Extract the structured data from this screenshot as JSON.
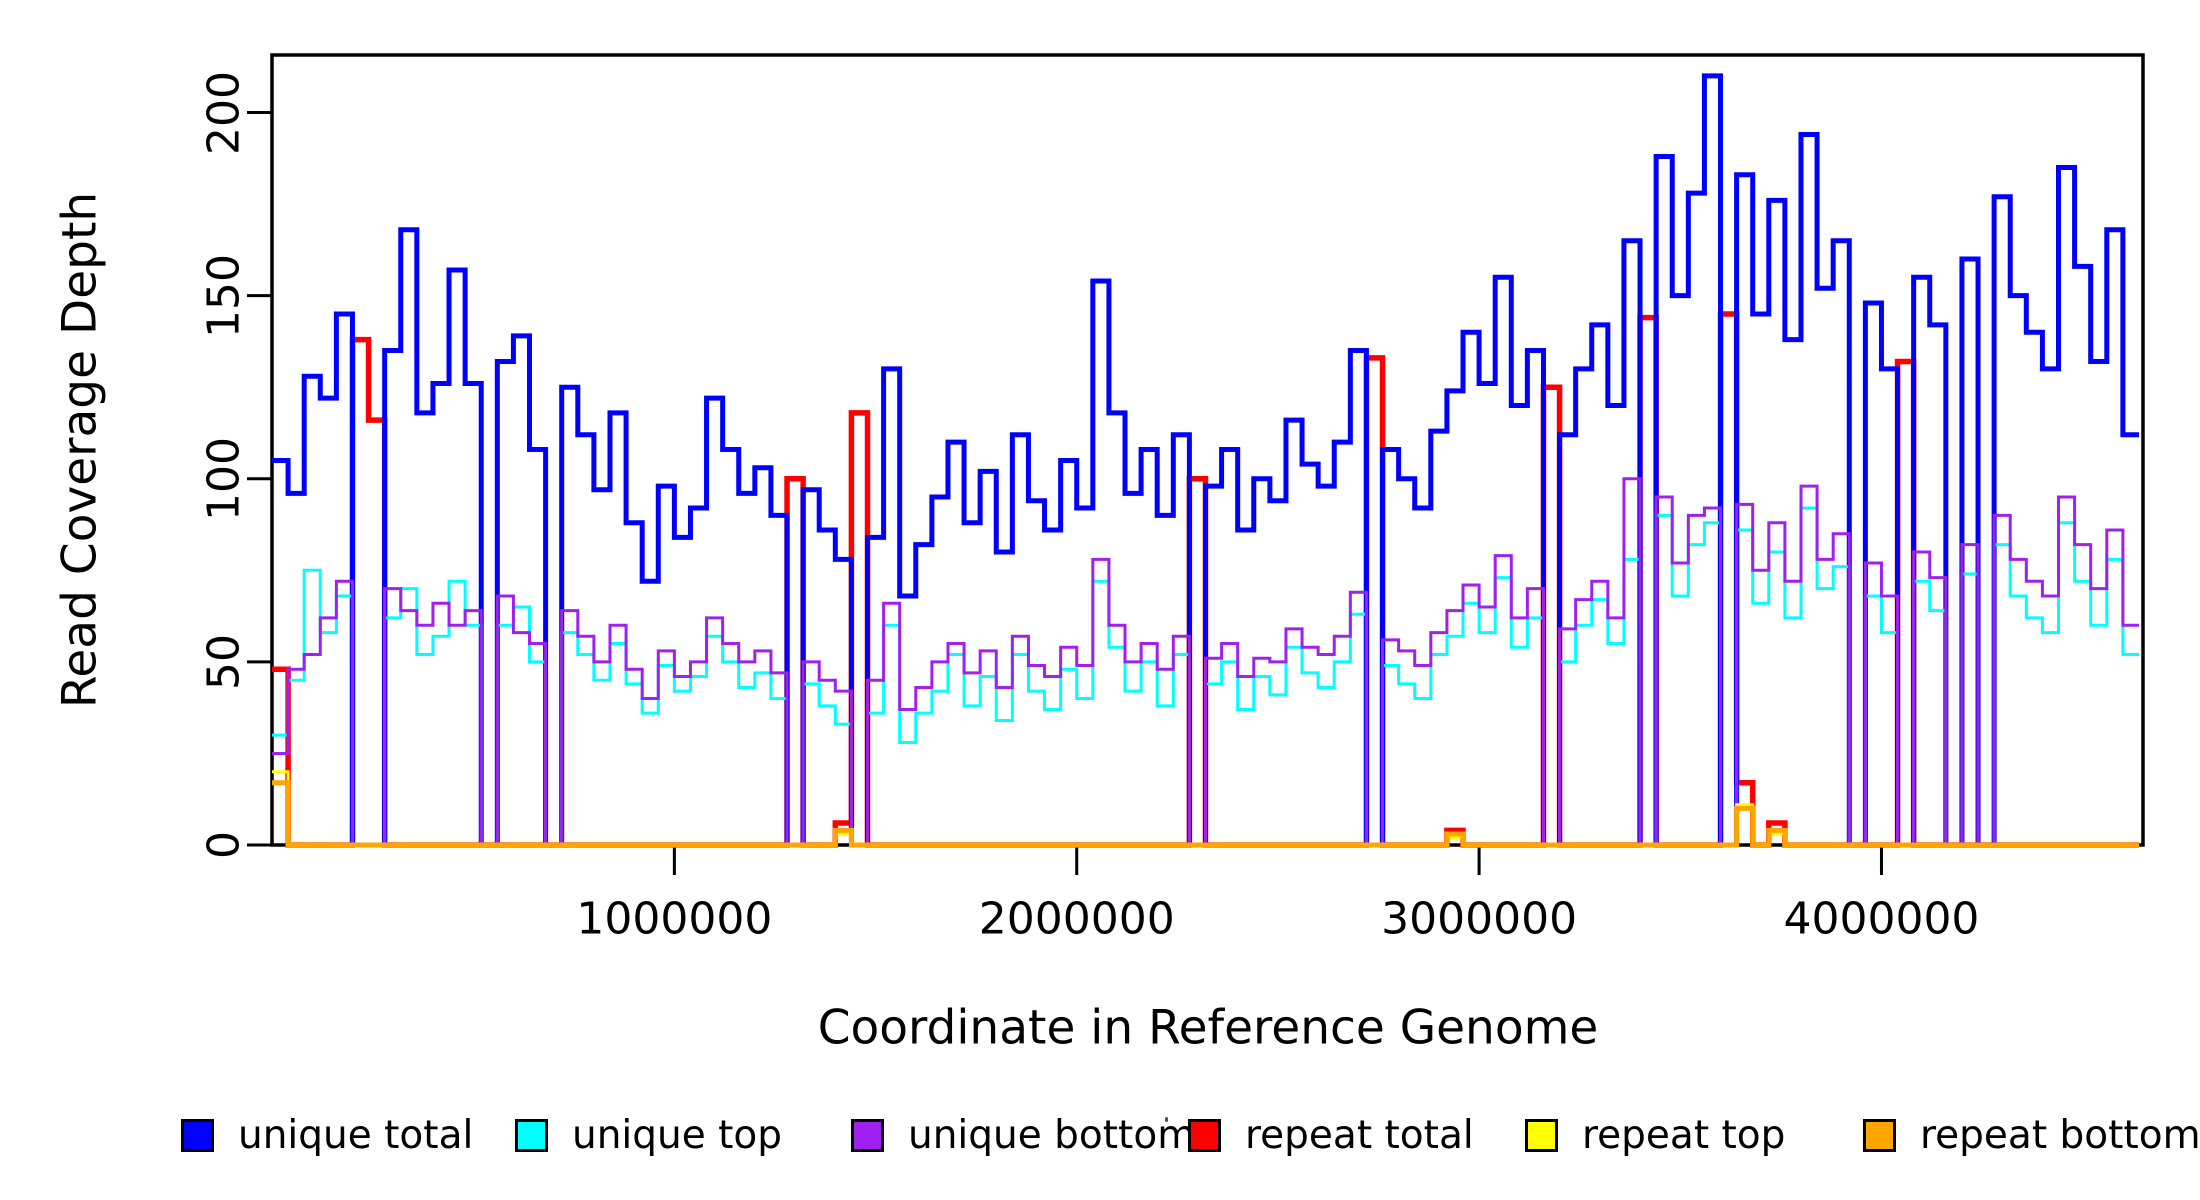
{
  "y_axis": {
    "label": "Read Coverage Depth",
    "tick_values": [
      0,
      50,
      100,
      150,
      200
    ],
    "tick_labels": [
      "0",
      "50",
      "100",
      "150",
      "200"
    ]
  },
  "x_axis": {
    "label": "Coordinate in Reference Genome",
    "tick_values": [
      1000000,
      2000000,
      3000000,
      4000000
    ],
    "tick_labels": [
      "1000000",
      "2000000",
      "3000000",
      "4000000"
    ]
  },
  "legend": {
    "items": [
      {
        "label": "unique total",
        "color": "#0000FF"
      },
      {
        "label": "unique top",
        "color": "#00FFFF"
      },
      {
        "label": "unique bottom",
        "color": "#A020F0"
      },
      {
        "label": "repeat total",
        "color": "#FF0000"
      },
      {
        "label": "repeat top",
        "color": "#FFFF00"
      },
      {
        "label": "repeat bottom",
        "color": "#FFA500"
      }
    ]
  },
  "chart_data": {
    "type": "line",
    "subtype": "step",
    "title": "",
    "xlabel": "Coordinate in Reference Genome",
    "ylabel": "Read Coverage Depth",
    "xlim": [
      0,
      4650000
    ],
    "ylim": [
      0,
      215
    ],
    "grid": false,
    "legend_position": "bottom",
    "axis_color": "#000000",
    "background": "#FFFFFF",
    "x_start": 0,
    "bin_size": 40000,
    "draw_order": [
      "repeat total",
      "unique total",
      "unique top",
      "unique bottom",
      "repeat top",
      "repeat bottom"
    ],
    "series": [
      {
        "name": "unique total",
        "color": "#0000FF",
        "line_width": 5,
        "values": [
          105,
          96,
          128,
          122,
          145,
          0,
          0,
          135,
          168,
          118,
          126,
          157,
          126,
          0,
          132,
          139,
          108,
          0,
          125,
          112,
          97,
          118,
          88,
          72,
          98,
          84,
          92,
          122,
          108,
          96,
          103,
          90,
          0,
          97,
          86,
          78,
          0,
          84,
          130,
          68,
          82,
          95,
          110,
          88,
          102,
          80,
          112,
          94,
          86,
          105,
          92,
          154,
          118,
          96,
          108,
          90,
          112,
          0,
          98,
          108,
          86,
          100,
          94,
          116,
          104,
          98,
          110,
          135,
          0,
          108,
          100,
          92,
          113,
          124,
          140,
          126,
          155,
          120,
          135,
          0,
          112,
          130,
          142,
          120,
          165,
          0,
          188,
          150,
          178,
          210,
          0,
          183,
          145,
          176,
          138,
          194,
          152,
          165,
          0,
          148,
          130,
          0,
          155,
          142,
          0,
          160,
          0,
          177,
          150,
          140,
          130,
          185,
          158,
          132,
          168,
          112
        ]
      },
      {
        "name": "unique top",
        "color": "#00FFFF",
        "line_width": 3,
        "values": [
          30,
          45,
          75,
          58,
          68,
          0,
          0,
          62,
          70,
          52,
          57,
          72,
          60,
          0,
          60,
          65,
          50,
          0,
          58,
          52,
          45,
          55,
          44,
          36,
          49,
          42,
          46,
          57,
          50,
          43,
          47,
          40,
          0,
          44,
          38,
          33,
          0,
          36,
          60,
          28,
          36,
          42,
          52,
          38,
          46,
          34,
          52,
          42,
          37,
          48,
          40,
          72,
          54,
          42,
          50,
          38,
          52,
          0,
          44,
          50,
          37,
          46,
          41,
          54,
          47,
          43,
          50,
          63,
          0,
          49,
          44,
          40,
          52,
          57,
          66,
          58,
          73,
          54,
          62,
          0,
          50,
          60,
          67,
          55,
          78,
          0,
          90,
          68,
          82,
          88,
          0,
          86,
          66,
          80,
          62,
          92,
          70,
          76,
          0,
          68,
          58,
          0,
          72,
          64,
          0,
          74,
          0,
          82,
          68,
          62,
          58,
          88,
          72,
          60,
          78,
          52
        ]
      },
      {
        "name": "unique bottom",
        "color": "#A020F0",
        "line_width": 3,
        "values": [
          25,
          48,
          52,
          62,
          72,
          0,
          0,
          70,
          64,
          60,
          66,
          60,
          64,
          0,
          68,
          58,
          55,
          0,
          64,
          57,
          50,
          60,
          48,
          40,
          53,
          46,
          50,
          62,
          55,
          50,
          53,
          47,
          0,
          50,
          45,
          42,
          0,
          45,
          66,
          37,
          43,
          50,
          55,
          47,
          53,
          43,
          57,
          49,
          46,
          54,
          49,
          78,
          60,
          50,
          55,
          48,
          57,
          0,
          51,
          55,
          46,
          51,
          50,
          59,
          54,
          52,
          57,
          69,
          0,
          56,
          53,
          49,
          58,
          64,
          71,
          65,
          79,
          62,
          70,
          0,
          59,
          67,
          72,
          62,
          100,
          0,
          95,
          77,
          90,
          92,
          0,
          93,
          75,
          88,
          72,
          98,
          78,
          85,
          0,
          77,
          68,
          0,
          80,
          73,
          0,
          82,
          0,
          90,
          78,
          72,
          68,
          95,
          82,
          70,
          86,
          60
        ]
      },
      {
        "name": "repeat total",
        "color": "#FF0000",
        "line_width": 5.5,
        "values": [
          48,
          0,
          0,
          0,
          0,
          138,
          116,
          0,
          0,
          0,
          0,
          0,
          0,
          0,
          0,
          0,
          0,
          0,
          0,
          0,
          0,
          0,
          0,
          0,
          0,
          0,
          0,
          0,
          0,
          0,
          0,
          0,
          100,
          0,
          0,
          6,
          118,
          0,
          0,
          0,
          0,
          0,
          0,
          0,
          0,
          0,
          0,
          0,
          0,
          0,
          0,
          0,
          0,
          0,
          0,
          0,
          0,
          100,
          0,
          0,
          0,
          0,
          0,
          0,
          0,
          0,
          0,
          0,
          133,
          0,
          0,
          0,
          0,
          4,
          0,
          0,
          0,
          0,
          0,
          125,
          0,
          0,
          0,
          0,
          0,
          144,
          0,
          0,
          0,
          0,
          145,
          17,
          0,
          6,
          0,
          0,
          0,
          0,
          0,
          0,
          0,
          132,
          0,
          0,
          0,
          0,
          0,
          0,
          0,
          0,
          0,
          0,
          0,
          0,
          0,
          0
        ]
      },
      {
        "name": "repeat top",
        "color": "#FFFF00",
        "line_width": 3,
        "values": [
          20,
          0,
          0,
          0,
          0,
          0,
          0,
          0,
          0,
          0,
          0,
          0,
          0,
          0,
          0,
          0,
          0,
          0,
          0,
          0,
          0,
          0,
          0,
          0,
          0,
          0,
          0,
          0,
          0,
          0,
          0,
          0,
          0,
          0,
          0,
          3,
          0,
          0,
          0,
          0,
          0,
          0,
          0,
          0,
          0,
          0,
          0,
          0,
          0,
          0,
          0,
          0,
          0,
          0,
          0,
          0,
          0,
          0,
          0,
          0,
          0,
          0,
          0,
          0,
          0,
          0,
          0,
          0,
          0,
          0,
          0,
          0,
          0,
          2,
          0,
          0,
          0,
          0,
          0,
          0,
          0,
          0,
          0,
          0,
          0,
          0,
          0,
          0,
          0,
          0,
          0,
          11,
          0,
          3,
          0,
          0,
          0,
          0,
          0,
          0,
          0,
          0,
          0,
          0,
          0,
          0,
          0,
          0,
          0,
          0,
          0,
          0,
          0,
          0,
          0,
          0
        ]
      },
      {
        "name": "repeat bottom",
        "color": "#FFA500",
        "line_width": 5,
        "values": [
          17,
          0,
          0,
          0,
          0,
          0,
          0,
          0,
          0,
          0,
          0,
          0,
          0,
          0,
          0,
          0,
          0,
          0,
          0,
          0,
          0,
          0,
          0,
          0,
          0,
          0,
          0,
          0,
          0,
          0,
          0,
          0,
          0,
          0,
          0,
          4,
          0,
          0,
          0,
          0,
          0,
          0,
          0,
          0,
          0,
          0,
          0,
          0,
          0,
          0,
          0,
          0,
          0,
          0,
          0,
          0,
          0,
          0,
          0,
          0,
          0,
          0,
          0,
          0,
          0,
          0,
          0,
          0,
          0,
          0,
          0,
          0,
          0,
          3,
          0,
          0,
          0,
          0,
          0,
          0,
          0,
          0,
          0,
          0,
          0,
          0,
          0,
          0,
          0,
          0,
          0,
          10,
          0,
          4,
          0,
          0,
          0,
          0,
          0,
          0,
          0,
          0,
          0,
          0,
          0,
          0,
          0,
          0,
          0,
          0,
          0,
          0,
          0,
          0,
          0,
          0
        ]
      }
    ]
  },
  "artifacts": {
    "stray_dot": "small stray mark between 'unique bottom' label and 'repeat total' swatch"
  }
}
